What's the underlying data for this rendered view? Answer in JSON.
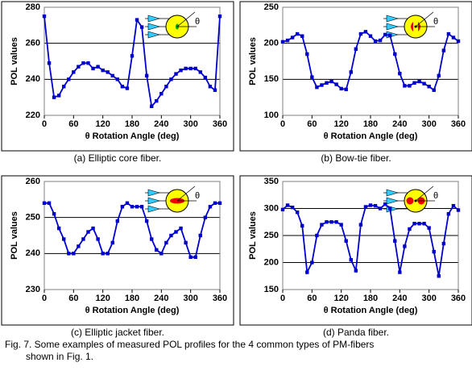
{
  "chart_data": [
    {
      "type": "line",
      "ylabel": "POL values",
      "xlabel": "θ Rotation Angle (deg)",
      "caption": "(a) Elliptic core fiber.",
      "inset_label": "θ",
      "color": "#0000cc",
      "x": [
        0,
        10,
        20,
        30,
        40,
        50,
        60,
        70,
        80,
        90,
        100,
        110,
        120,
        130,
        140,
        150,
        160,
        170,
        180,
        190,
        200,
        210,
        220,
        230,
        240,
        250,
        260,
        270,
        280,
        290,
        300,
        310,
        320,
        330,
        340,
        350,
        360
      ],
      "values": [
        275,
        249,
        230,
        231,
        236,
        240,
        244,
        247,
        249,
        249,
        246,
        247,
        245,
        244,
        242,
        240,
        236,
        235,
        253,
        273,
        269,
        242,
        225,
        228,
        232,
        236,
        240,
        243,
        245,
        246,
        246,
        246,
        244,
        241,
        236,
        234,
        275
      ],
      "xlim": [
        0,
        360
      ],
      "xticks": [
        0,
        60,
        120,
        180,
        240,
        300,
        360
      ],
      "ylim": [
        220,
        280
      ],
      "yticks": [
        220,
        240,
        260,
        280
      ],
      "grid": true
    },
    {
      "type": "line",
      "ylabel": "POL values",
      "xlabel": "θ Rotation Angle (deg)",
      "caption": "(b) Bow-tie fiber.",
      "inset_label": "θ",
      "color": "#0000cc",
      "x": [
        0,
        10,
        20,
        30,
        40,
        50,
        60,
        70,
        80,
        90,
        100,
        110,
        120,
        130,
        140,
        150,
        160,
        170,
        180,
        190,
        200,
        210,
        220,
        230,
        240,
        250,
        260,
        270,
        280,
        290,
        300,
        310,
        320,
        330,
        340,
        350,
        360
      ],
      "values": [
        202,
        204,
        208,
        213,
        210,
        185,
        153,
        139,
        142,
        145,
        147,
        143,
        137,
        136,
        160,
        192,
        213,
        216,
        210,
        203,
        204,
        212,
        211,
        185,
        158,
        141,
        141,
        145,
        147,
        144,
        140,
        135,
        155,
        190,
        213,
        208,
        203
      ],
      "xlim": [
        0,
        360
      ],
      "xticks": [
        0,
        60,
        120,
        180,
        240,
        300,
        360
      ],
      "ylim": [
        100,
        250
      ],
      "yticks": [
        100,
        150,
        200,
        250
      ],
      "grid": true
    },
    {
      "type": "line",
      "ylabel": "POL values",
      "xlabel": "θ Rotation Angle (deg)",
      "caption": "(c) Elliptic jacket fiber.",
      "inset_label": "θ",
      "color": "#0000cc",
      "x": [
        0,
        10,
        20,
        30,
        40,
        50,
        60,
        70,
        80,
        90,
        100,
        110,
        120,
        130,
        140,
        150,
        160,
        170,
        180,
        190,
        200,
        210,
        220,
        230,
        240,
        250,
        260,
        270,
        280,
        290,
        300,
        310,
        320,
        330,
        340,
        350,
        360
      ],
      "values": [
        254,
        254,
        251,
        247,
        244,
        240,
        240,
        242,
        244,
        246,
        247,
        244,
        240,
        240,
        243,
        249,
        253,
        254,
        253,
        253,
        253,
        249,
        244,
        241,
        240,
        243,
        245,
        246,
        247,
        243,
        239,
        239,
        245,
        250,
        253,
        254,
        254
      ],
      "xlim": [
        0,
        360
      ],
      "xticks": [
        0,
        60,
        120,
        180,
        240,
        300,
        360
      ],
      "ylim": [
        230,
        260
      ],
      "yticks": [
        230,
        240,
        250,
        260
      ],
      "grid": true
    },
    {
      "type": "line",
      "ylabel": "POL values",
      "xlabel": "θ Rotation Angle (deg)",
      "caption": "(d) Panda fiber.",
      "inset_label": "θ",
      "color": "#0000cc",
      "x": [
        0,
        10,
        20,
        30,
        40,
        50,
        60,
        70,
        80,
        90,
        100,
        110,
        120,
        130,
        140,
        150,
        160,
        170,
        180,
        190,
        200,
        210,
        220,
        230,
        240,
        250,
        260,
        270,
        280,
        290,
        300,
        310,
        320,
        330,
        340,
        350,
        360
      ],
      "values": [
        298,
        306,
        302,
        293,
        268,
        182,
        200,
        250,
        270,
        275,
        275,
        275,
        270,
        240,
        205,
        185,
        270,
        303,
        306,
        305,
        300,
        308,
        300,
        240,
        182,
        230,
        262,
        272,
        272,
        272,
        264,
        220,
        175,
        235,
        290,
        305,
        297
      ],
      "xlim": [
        0,
        360
      ],
      "xticks": [
        0,
        60,
        120,
        180,
        240,
        300,
        360
      ],
      "ylim": [
        150,
        350
      ],
      "yticks": [
        150,
        200,
        250,
        300,
        350
      ],
      "grid": true
    }
  ],
  "figure_caption": [
    "Fig. 7. Some examples of measured POL profiles for the 4 common types of PM-fibers",
    "shown in Fig. 1."
  ]
}
